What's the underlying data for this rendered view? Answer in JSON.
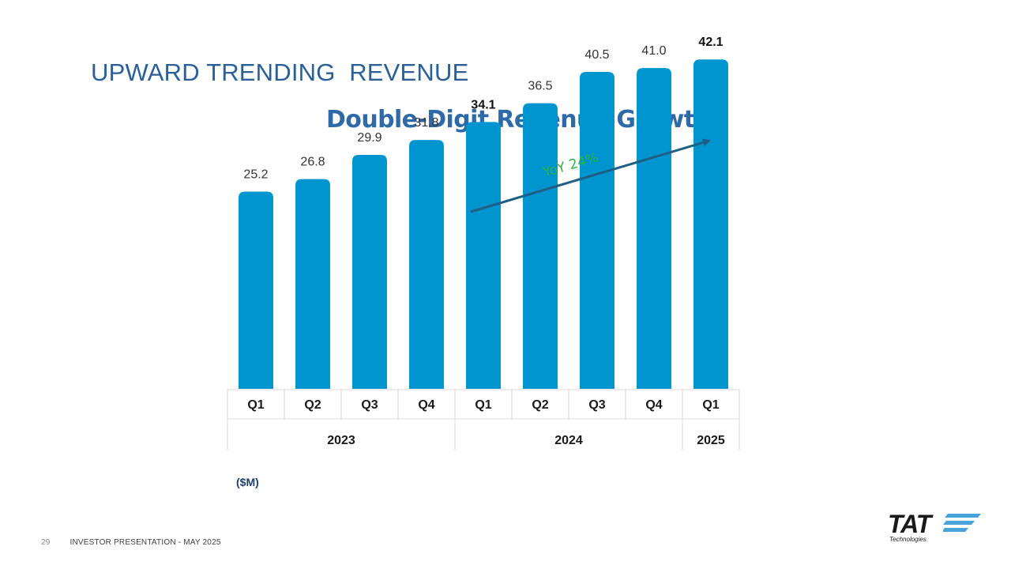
{
  "slide": {
    "title": "UPWARD TRENDING  REVENUE",
    "subtitle": "Double-Digit Revenue Growth",
    "unit": "($M)"
  },
  "footer": {
    "page": "29",
    "text": "INVESTOR PRESENTATION  -  MAY 2025"
  },
  "logo": {
    "name": "TAT",
    "sub": "Technologies",
    "stripe_color": "#4aa3d8"
  },
  "chart_data": {
    "type": "bar",
    "categories": [
      "Q1",
      "Q2",
      "Q3",
      "Q4",
      "Q1",
      "Q2",
      "Q3",
      "Q4",
      "Q1"
    ],
    "years": [
      {
        "label": "2023",
        "span": 4
      },
      {
        "label": "2024",
        "span": 4
      },
      {
        "label": "2025",
        "span": 1
      }
    ],
    "values": [
      25.2,
      26.8,
      29.9,
      31.8,
      34.1,
      36.5,
      40.5,
      41.0,
      42.1
    ],
    "value_labels": [
      "25.2",
      "26.8",
      "29.9",
      "31.8",
      "34.1",
      "36.5",
      "40.5",
      "41.0",
      "42.1"
    ],
    "bold_labels": [
      4,
      8
    ],
    "bar_color": "#0095cf",
    "annotation": {
      "text": "YoY 24%",
      "color": "#2ab34a",
      "arrow_color": "#1f5f86"
    },
    "title": "Double-Digit Revenue Growth",
    "ylabel": "($M)",
    "legend": "none",
    "grid": false
  }
}
